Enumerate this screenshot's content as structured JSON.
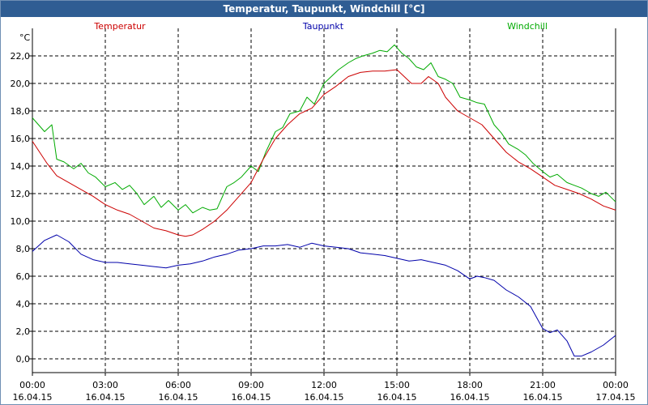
{
  "window": {
    "title": "Temperatur, Taupunkt, Windchill [°C]"
  },
  "chart_data": {
    "type": "line",
    "title": "Temperatur, Taupunkt, Windchill [°C]",
    "ylabel": "°C",
    "xlabel": "",
    "ylim": [
      -1.0,
      24.0
    ],
    "xlim": [
      0,
      24
    ],
    "grid": true,
    "yticks": [
      0.0,
      2.0,
      4.0,
      6.0,
      8.0,
      10.0,
      12.0,
      14.0,
      16.0,
      18.0,
      20.0,
      22.0
    ],
    "yticklabels": [
      "0,0",
      "2,0",
      "4,0",
      "6,0",
      "8,0",
      "10,0",
      "12,0",
      "14,0",
      "16,0",
      "18,0",
      "20,0",
      "22,0"
    ],
    "xticks": [
      0,
      3,
      6,
      9,
      12,
      15,
      18,
      21,
      24
    ],
    "xticklabels": [
      {
        "time": "00:00",
        "date": "16.04.15"
      },
      {
        "time": "03:00",
        "date": "16.04.15"
      },
      {
        "time": "06:00",
        "date": "16.04.15"
      },
      {
        "time": "09:00",
        "date": "16.04.15"
      },
      {
        "time": "12:00",
        "date": "16.04.15"
      },
      {
        "time": "15:00",
        "date": "16.04.15"
      },
      {
        "time": "18:00",
        "date": "16.04.15"
      },
      {
        "time": "21:00",
        "date": "16.04.15"
      },
      {
        "time": "00:00",
        "date": "17.04.15"
      }
    ],
    "legend": [
      {
        "name": "Temperatur",
        "color": "#cc0000"
      },
      {
        "name": "Taupunkt",
        "color": "#0000aa"
      },
      {
        "name": "Windchill",
        "color": "#00aa00"
      }
    ],
    "series": [
      {
        "name": "Windchill",
        "color": "#00aa00",
        "x": [
          0,
          0.5,
          0.8,
          1.0,
          1.3,
          1.7,
          2.0,
          2.3,
          2.6,
          3.0,
          3.4,
          3.7,
          4.0,
          4.3,
          4.6,
          5.0,
          5.3,
          5.6,
          6.0,
          6.3,
          6.6,
          7.0,
          7.3,
          7.6,
          8.0,
          8.3,
          8.6,
          9.0,
          9.3,
          9.6,
          10.0,
          10.3,
          10.6,
          11.0,
          11.3,
          11.6,
          12.0,
          12.3,
          12.6,
          13.0,
          13.3,
          13.6,
          14.0,
          14.3,
          14.6,
          14.9,
          15.2,
          15.5,
          15.8,
          16.1,
          16.4,
          16.7,
          17.0,
          17.3,
          17.6,
          18.0,
          18.3,
          18.6,
          19.0,
          19.3,
          19.6,
          20.0,
          20.3,
          20.6,
          21.0,
          21.3,
          21.6,
          22.0,
          22.3,
          22.6,
          23.0,
          23.3,
          23.6,
          24.0
        ],
        "y": [
          17.5,
          16.5,
          17.0,
          14.5,
          14.3,
          13.8,
          14.2,
          13.5,
          13.2,
          12.5,
          12.8,
          12.3,
          12.6,
          12.0,
          11.2,
          11.8,
          11.0,
          11.5,
          10.8,
          11.2,
          10.6,
          11.0,
          10.8,
          10.9,
          12.5,
          12.8,
          13.2,
          14.0,
          13.6,
          15.0,
          16.5,
          16.8,
          17.8,
          18.0,
          19.0,
          18.5,
          20.0,
          20.5,
          21.0,
          21.5,
          21.8,
          22.0,
          22.2,
          22.4,
          22.3,
          22.8,
          22.2,
          21.8,
          21.2,
          21.0,
          21.5,
          20.5,
          20.3,
          20.0,
          19.0,
          18.8,
          18.6,
          18.5,
          17.0,
          16.4,
          15.6,
          15.2,
          14.8,
          14.2,
          13.6,
          13.2,
          13.4,
          12.8,
          12.6,
          12.4,
          12.0,
          11.8,
          12.1,
          11.4
        ]
      },
      {
        "name": "Temperatur",
        "color": "#cc0000",
        "x": [
          0,
          0.3,
          0.6,
          1.0,
          1.5,
          2.0,
          2.5,
          3.0,
          3.5,
          4.0,
          4.5,
          5.0,
          5.5,
          6.0,
          6.3,
          6.6,
          7.0,
          7.5,
          8.0,
          8.5,
          9.0,
          9.5,
          10.0,
          10.5,
          11.0,
          11.5,
          12.0,
          12.5,
          13.0,
          13.5,
          14.0,
          14.5,
          15.0,
          15.3,
          15.6,
          16.0,
          16.3,
          16.7,
          17.0,
          17.5,
          18.0,
          18.5,
          19.0,
          19.5,
          20.0,
          20.5,
          21.0,
          21.5,
          22.0,
          22.5,
          23.0,
          23.5,
          24.0
        ],
        "y": [
          15.8,
          15.0,
          14.2,
          13.3,
          12.8,
          12.3,
          11.8,
          11.2,
          10.8,
          10.5,
          10.0,
          9.5,
          9.3,
          9.0,
          8.9,
          9.0,
          9.4,
          10.0,
          10.8,
          11.8,
          12.8,
          14.5,
          16.0,
          17.0,
          17.8,
          18.2,
          19.2,
          19.8,
          20.5,
          20.8,
          20.9,
          20.9,
          21.0,
          20.5,
          20.0,
          20.0,
          20.5,
          20.0,
          19.0,
          18.0,
          17.5,
          17.0,
          16.0,
          15.0,
          14.3,
          13.8,
          13.2,
          12.6,
          12.3,
          12.0,
          11.6,
          11.1,
          10.8
        ]
      },
      {
        "name": "Taupunkt",
        "color": "#0000aa",
        "x": [
          0,
          0.5,
          1.0,
          1.5,
          2.0,
          2.5,
          3.0,
          3.5,
          4.0,
          4.5,
          5.0,
          5.5,
          6.0,
          6.5,
          7.0,
          7.5,
          8.0,
          8.5,
          9.0,
          9.5,
          10.0,
          10.5,
          11.0,
          11.5,
          12.0,
          12.5,
          13.0,
          13.5,
          14.0,
          14.5,
          15.0,
          15.5,
          16.0,
          16.5,
          17.0,
          17.5,
          18.0,
          18.3,
          18.6,
          19.0,
          19.5,
          20.0,
          20.5,
          21.0,
          21.3,
          21.6,
          22.0,
          22.3,
          22.6,
          23.0,
          23.5,
          24.0
        ],
        "y": [
          7.8,
          8.6,
          9.0,
          8.5,
          7.6,
          7.2,
          7.0,
          7.0,
          6.9,
          6.8,
          6.7,
          6.6,
          6.8,
          6.9,
          7.1,
          7.4,
          7.6,
          7.9,
          8.0,
          8.2,
          8.2,
          8.3,
          8.1,
          8.4,
          8.2,
          8.1,
          8.0,
          7.7,
          7.6,
          7.5,
          7.3,
          7.1,
          7.2,
          7.0,
          6.8,
          6.4,
          5.8,
          6.0,
          5.9,
          5.7,
          5.0,
          4.5,
          3.8,
          2.2,
          1.9,
          2.1,
          1.3,
          0.2,
          0.2,
          0.5,
          1.0,
          1.7
        ]
      }
    ]
  }
}
